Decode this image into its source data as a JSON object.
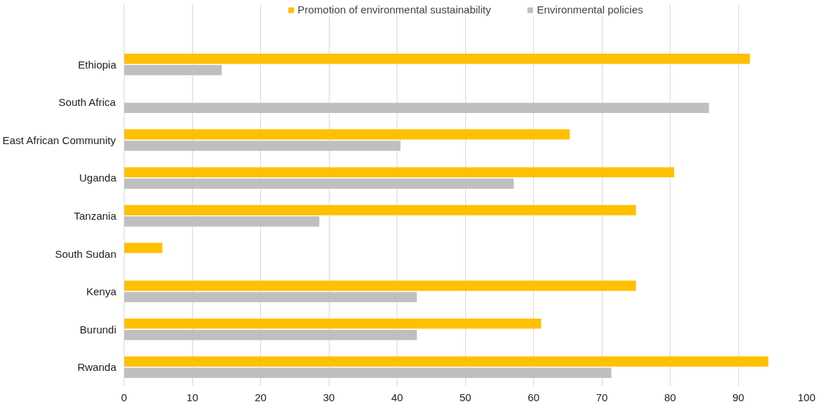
{
  "chart_data": {
    "type": "bar",
    "orientation": "horizontal",
    "categories": [
      "Ethiopia",
      "South Africa",
      "East African Community",
      "Uganda",
      "Tanzania",
      "South Sudan",
      "Kenya",
      "Burundi",
      "Rwanda"
    ],
    "series": [
      {
        "name": "Promotion of environmental sustainability",
        "color": "#ffc000",
        "values": [
          91.7,
          null,
          65.3,
          80.6,
          75,
          5.6,
          75,
          61.1,
          94.4
        ]
      },
      {
        "name": "Environmental policies",
        "color": "#bfbfbf",
        "values": [
          14.3,
          85.7,
          40.5,
          57.1,
          28.6,
          null,
          42.9,
          42.9,
          71.4
        ]
      }
    ],
    "xlim": [
      0,
      100
    ],
    "xticks": [
      0,
      10,
      20,
      30,
      40,
      50,
      60,
      70,
      80,
      90,
      100
    ],
    "grid": "x",
    "legend": "top"
  }
}
